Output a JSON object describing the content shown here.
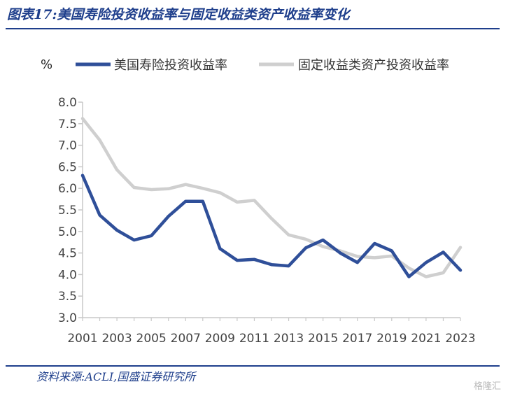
{
  "figure_title": "图表17:美国寿险投资收益率与固定收益类资产收益率变化",
  "source_note": "资料来源:ACLI,国盛证券研究所",
  "watermark": "格隆汇",
  "colors": {
    "brand": "#1f3f8c",
    "series_1": "#2f4f99",
    "series_2": "#cfcfcf",
    "axis": "#c8c8c8"
  },
  "chart_data": {
    "type": "line",
    "unit_label": "%",
    "x": [
      2001,
      2002,
      2003,
      2004,
      2005,
      2006,
      2007,
      2008,
      2009,
      2010,
      2011,
      2012,
      2013,
      2014,
      2015,
      2016,
      2017,
      2018,
      2019,
      2020,
      2021,
      2022,
      2023
    ],
    "x_tick_labels": [
      "2001",
      "2003",
      "2005",
      "2007",
      "2009",
      "2011",
      "2013",
      "2015",
      "2017",
      "2019",
      "2021",
      "2023"
    ],
    "y_tick_labels": [
      "3.0",
      "3.5",
      "4.0",
      "4.5",
      "5.0",
      "5.5",
      "6.0",
      "6.5",
      "7.0",
      "7.5",
      "8.0"
    ],
    "ylim": [
      3.0,
      8.0
    ],
    "legend_position": "top",
    "series": [
      {
        "name": "美国寿险投资收益率",
        "values": [
          6.3,
          5.38,
          5.03,
          4.8,
          4.9,
          5.35,
          5.7,
          5.7,
          4.6,
          4.33,
          4.35,
          4.23,
          4.2,
          4.62,
          4.8,
          4.5,
          4.28,
          4.72,
          4.55,
          3.95,
          4.28,
          4.52,
          4.1
        ]
      },
      {
        "name": "固定收益类资产投资收益率",
        "values": [
          7.62,
          7.12,
          6.43,
          6.02,
          5.97,
          5.99,
          6.09,
          6.0,
          5.9,
          5.68,
          5.72,
          5.3,
          4.92,
          4.82,
          4.65,
          4.55,
          4.42,
          4.39,
          4.43,
          4.15,
          3.95,
          4.04,
          4.63
        ]
      }
    ]
  }
}
